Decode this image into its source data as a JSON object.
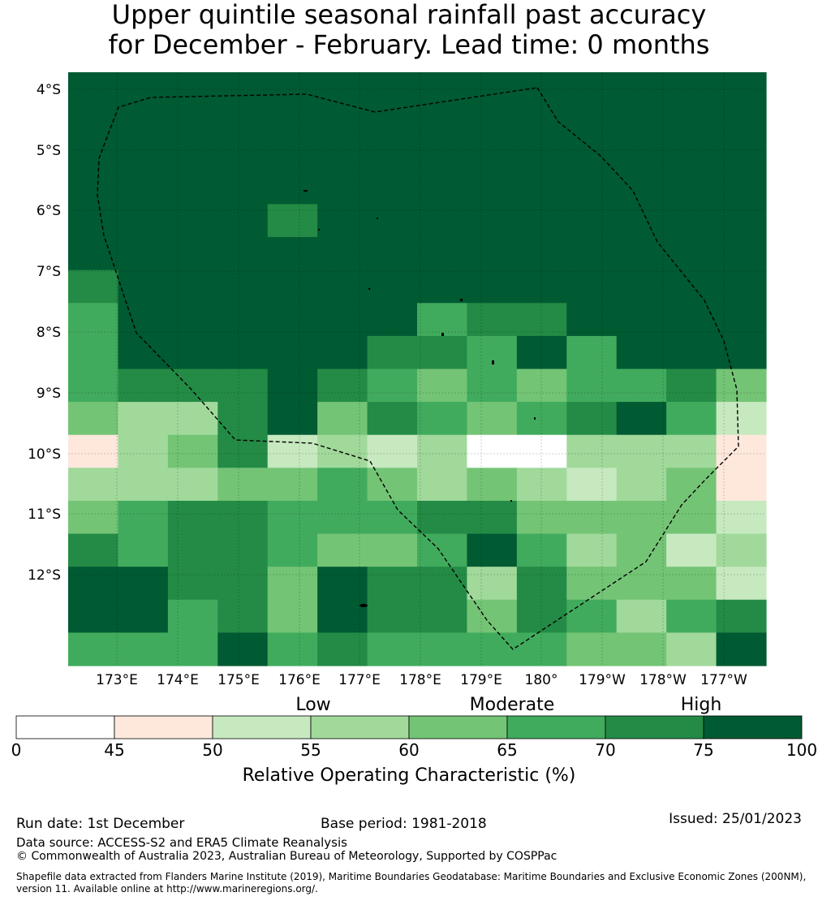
{
  "title": {
    "line1": "Upper quintile seasonal rainfall past accuracy",
    "line2": "for December - February. Lead time: 0 months"
  },
  "map": {
    "lat_labels": [
      "4°S",
      "5°S",
      "6°S",
      "7°S",
      "8°S",
      "9°S",
      "10°S",
      "11°S",
      "12°S"
    ],
    "lon_labels": [
      "173°E",
      "174°E",
      "175°E",
      "176°E",
      "177°E",
      "178°E",
      "179°E",
      "180°",
      "179°W",
      "178°W",
      "177°W"
    ],
    "grid_rows": [
      [
        9,
        9,
        9,
        9,
        9,
        9,
        9,
        9,
        9,
        9,
        9,
        9,
        9,
        9
      ],
      [
        9,
        9,
        9,
        9,
        9,
        9,
        9,
        9,
        9,
        9,
        9,
        9,
        9,
        9
      ],
      [
        9,
        9,
        9,
        9,
        9,
        9,
        9,
        9,
        9,
        9,
        9,
        9,
        9,
        9
      ],
      [
        9,
        9,
        9,
        9,
        9,
        9,
        9,
        9,
        9,
        9,
        9,
        9,
        9,
        9
      ],
      [
        9,
        9,
        9,
        9,
        8,
        9,
        9,
        9,
        9,
        9,
        9,
        9,
        9,
        9
      ],
      [
        9,
        9,
        9,
        9,
        9,
        9,
        9,
        9,
        9,
        9,
        9,
        9,
        9,
        9
      ],
      [
        8,
        9,
        9,
        9,
        9,
        9,
        9,
        9,
        9,
        9,
        9,
        9,
        9,
        9
      ],
      [
        7,
        9,
        9,
        9,
        9,
        9,
        9,
        7,
        8,
        8,
        9,
        9,
        9,
        9
      ],
      [
        7,
        9,
        9,
        9,
        9,
        9,
        8,
        8,
        7,
        9,
        7,
        9,
        9,
        9
      ],
      [
        7,
        8,
        8,
        8,
        9,
        8,
        7,
        6,
        7,
        6,
        7,
        7,
        8,
        6
      ],
      [
        6,
        5,
        5,
        8,
        9,
        6,
        8,
        7,
        6,
        7,
        8,
        9,
        7,
        4
      ],
      [
        2,
        5,
        6,
        8,
        4,
        5,
        4,
        5,
        1,
        1,
        5,
        5,
        5,
        2
      ],
      [
        5,
        5,
        5,
        6,
        6,
        7,
        6,
        5,
        6,
        5,
        4,
        5,
        6,
        2
      ],
      [
        6,
        7,
        8,
        8,
        7,
        7,
        7,
        8,
        8,
        6,
        6,
        6,
        6,
        4
      ],
      [
        8,
        7,
        8,
        8,
        7,
        6,
        6,
        7,
        9,
        7,
        5,
        6,
        4,
        5
      ],
      [
        9,
        9,
        8,
        8,
        6,
        9,
        8,
        8,
        5,
        8,
        6,
        6,
        6,
        4
      ],
      [
        9,
        9,
        7,
        8,
        6,
        9,
        8,
        8,
        6,
        8,
        7,
        5,
        7,
        8
      ],
      [
        7,
        7,
        7,
        9,
        7,
        8,
        7,
        7,
        7,
        7,
        6,
        6,
        5,
        9
      ]
    ]
  },
  "colorbar": {
    "ticks": [
      "0",
      "45",
      "50",
      "55",
      "60",
      "65",
      "70",
      "75",
      "100"
    ],
    "categories": [
      "Low",
      "Moderate",
      "High"
    ],
    "colors": [
      "#ffffff",
      "#fee8dc",
      "#c7e9c0",
      "#a1d99b",
      "#74c476",
      "#41ab5d",
      "#238b45",
      "#005a32"
    ],
    "label": "Relative Operating Characteristic (%)"
  },
  "footer": {
    "run_date": "Run date: 1st December",
    "base_period": "Base period: 1981-2018",
    "issued": "Issued: 25/01/2023",
    "data_source": "Data source: ACCESS-S2 and ERA5 Climate Reanalysis",
    "copyright": "© Commonwealth of Australia 2023, Australian Bureau of Meteorology, Supported by COSPPac",
    "shapefile_line1": "Shapefile data extracted from Flanders Marine Institute (2019), Maritime Boundaries Geodatabase: Maritime Boundaries and Exclusive Economic Zones (200NM),",
    "shapefile_line2": "version 11. Available online at http://www.marineregions.org/."
  }
}
